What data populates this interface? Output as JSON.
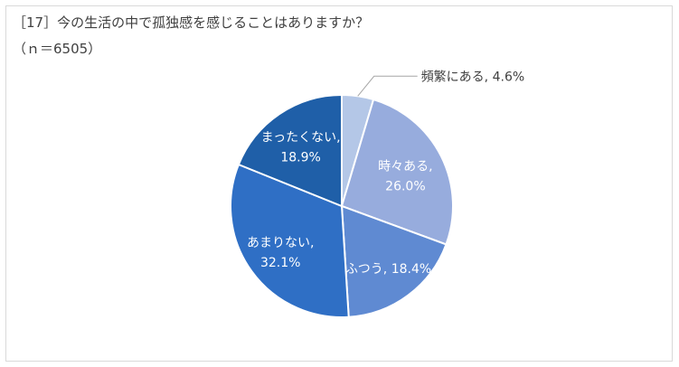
{
  "header": {
    "title": "［17］今の生活の中で孤独感を感じることはありますか？",
    "subtitle": "（ｎ＝6505）"
  },
  "chart_data": {
    "type": "pie",
    "title": "［17］今の生活の中で孤独感を感じることはありますか？",
    "subtitle": "（ｎ＝6505）",
    "start_angle": "12 o'clock",
    "direction": "clockwise",
    "slices": [
      {
        "label": "頻繁にある",
        "value": 4.6,
        "display_value": "4.6%",
        "color": "#b4c7e7"
      },
      {
        "label": "時々ある",
        "value": 26.0,
        "display_value": "26.0%",
        "color": "#97acdd"
      },
      {
        "label": "ふつう",
        "value": 18.4,
        "display_value": "18.4%",
        "color": "#5f8ad2"
      },
      {
        "label": "あまりない",
        "value": 32.1,
        "display_value": "32.1%",
        "color": "#2f6fc5"
      },
      {
        "label": "まったくない",
        "value": 18.9,
        "display_value": "18.9%",
        "color": "#1f5fa8"
      }
    ],
    "legend": "none",
    "data_labels": "category, percent"
  }
}
